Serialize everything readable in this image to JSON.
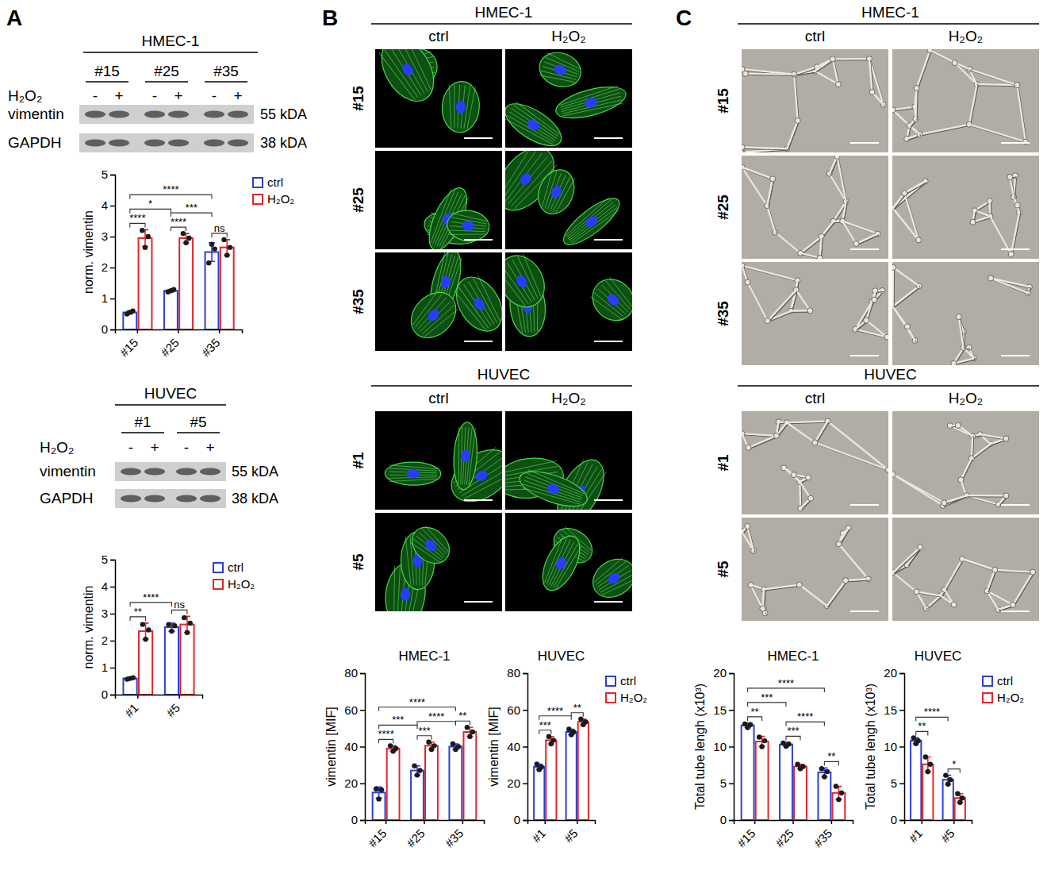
{
  "figure": {
    "panel_letters": [
      "A",
      "B",
      "C"
    ],
    "blots": [
      {
        "cell_line": "HMEC-1",
        "groups": [
          "#15",
          "#25",
          "#35"
        ],
        "treatment": "H₂O₂",
        "lanes": [
          "-",
          "+",
          "-",
          "+",
          "-",
          "+"
        ],
        "rows": [
          {
            "protein": "vimentin",
            "size": "55 kDA"
          },
          {
            "protein": "GAPDH",
            "size": "38 kDA"
          }
        ]
      },
      {
        "cell_line": "HUVEC",
        "groups": [
          "#1",
          "#5"
        ],
        "treatment": "H₂O₂",
        "lanes": [
          "-",
          "+",
          "-",
          "+"
        ],
        "rows": [
          {
            "protein": "vimentin",
            "size": "55 kDA"
          },
          {
            "protein": "GAPDH",
            "size": "38 kDA"
          }
        ]
      }
    ],
    "immunofluorescence": [
      {
        "cell_line": "HMEC-1",
        "columns": [
          "ctrl",
          "H₂O₂"
        ],
        "rows": [
          "#15",
          "#25",
          "#35"
        ]
      },
      {
        "cell_line": "HUVEC",
        "columns": [
          "ctrl",
          "H₂O₂"
        ],
        "rows": [
          "#1",
          "#5"
        ]
      }
    ],
    "tube_formation": [
      {
        "cell_line": "HMEC-1",
        "columns": [
          "ctrl",
          "H₂O₂"
        ],
        "rows": [
          "#15",
          "#25",
          "#35"
        ]
      },
      {
        "cell_line": "HUVEC",
        "columns": [
          "ctrl",
          "H₂O₂"
        ],
        "rows": [
          "#1",
          "#5"
        ]
      }
    ]
  },
  "chart_data": [
    {
      "type": "bar",
      "ylabel": "norm. vimentin",
      "categories": [
        "#15",
        "#25",
        "#35"
      ],
      "series": [
        {
          "name": "ctrl",
          "color": "#2b3fd6",
          "values": [
            0.55,
            1.25,
            2.5
          ],
          "errors": [
            0.05,
            0.04,
            0.3
          ],
          "points": [
            [
              0.5,
              0.55,
              0.6
            ],
            [
              1.21,
              1.25,
              1.29
            ],
            [
              2.15,
              2.75,
              2.6
            ]
          ]
        },
        {
          "name": "H₂O₂",
          "color": "#e0262b",
          "values": [
            2.95,
            2.95,
            2.65
          ],
          "errors": [
            0.27,
            0.15,
            0.25
          ],
          "points": [
            [
              3.2,
              2.65,
              3.0
            ],
            [
              3.1,
              2.8,
              2.95
            ],
            [
              2.9,
              2.4,
              2.65
            ]
          ]
        }
      ],
      "ylim": [
        0,
        5
      ],
      "yticks": [
        0,
        1,
        2,
        3,
        4,
        5
      ],
      "legend": "upper right",
      "comparisons": [
        {
          "label": "****",
          "a": [
            0,
            0
          ],
          "b": [
            0,
            2
          ]
        },
        {
          "label": "*",
          "a": [
            0,
            0
          ],
          "b": [
            0,
            1
          ]
        },
        {
          "label": "***",
          "a": [
            0,
            1
          ],
          "b": [
            0,
            2
          ]
        },
        {
          "label": "****",
          "a": [
            0,
            0
          ],
          "b": [
            1,
            0
          ]
        },
        {
          "label": "****",
          "a": [
            0,
            1
          ],
          "b": [
            1,
            1
          ]
        },
        {
          "label": "ns",
          "a": [
            0,
            2
          ],
          "b": [
            1,
            2
          ]
        }
      ]
    },
    {
      "type": "bar",
      "ylabel": "norm. vimentin",
      "categories": [
        "#1",
        "#5"
      ],
      "series": [
        {
          "name": "ctrl",
          "color": "#2b3fd6",
          "values": [
            0.6,
            2.5
          ],
          "errors": [
            0.05,
            0.15
          ],
          "points": [
            [
              0.57,
              0.6,
              0.63
            ],
            [
              2.6,
              2.35,
              2.55
            ]
          ]
        },
        {
          "name": "H₂O₂",
          "color": "#e0262b",
          "values": [
            2.35,
            2.6
          ],
          "errors": [
            0.3,
            0.3
          ],
          "points": [
            [
              2.6,
              2.05,
              2.4
            ],
            [
              2.85,
              2.3,
              2.65
            ]
          ]
        }
      ],
      "ylim": [
        0,
        5
      ],
      "yticks": [
        0,
        1,
        2,
        3,
        4,
        5
      ],
      "legend": "upper right",
      "comparisons": [
        {
          "label": "****",
          "a": [
            0,
            0
          ],
          "b": [
            0,
            1
          ]
        },
        {
          "label": "**",
          "a": [
            0,
            0
          ],
          "b": [
            1,
            0
          ]
        },
        {
          "label": "ns",
          "a": [
            0,
            1
          ],
          "b": [
            1,
            1
          ]
        }
      ]
    },
    {
      "type": "bar",
      "title": "HMEC-1",
      "ylabel": "vimentin [MIF]",
      "categories": [
        "#15",
        "#25",
        "#35"
      ],
      "series": [
        {
          "name": "ctrl",
          "color": "#2b3fd6",
          "values": [
            15,
            27,
            40
          ],
          "errors": [
            3,
            2.5,
            1.5
          ],
          "points": [
            [
              17,
              11.5,
              16.5
            ],
            [
              29.5,
              24.5,
              27
            ],
            [
              41.5,
              38.5,
              40
            ]
          ]
        },
        {
          "name": "H₂O₂",
          "color": "#e0262b",
          "values": [
            39,
            40.5,
            48
          ],
          "errors": [
            1.5,
            2,
            2.5
          ],
          "points": [
            [
              40.5,
              37.5,
              39
            ],
            [
              42.5,
              38.5,
              40.5
            ],
            [
              50.5,
              45.5,
              48
            ]
          ]
        }
      ],
      "ylim": [
        0,
        80
      ],
      "yticks": [
        0,
        20,
        40,
        60,
        80
      ],
      "comparisons": [
        {
          "label": "****",
          "a": [
            0,
            0
          ],
          "b": [
            0,
            2
          ]
        },
        {
          "label": "***",
          "a": [
            0,
            0
          ],
          "b": [
            0,
            1
          ]
        },
        {
          "label": "****",
          "a": [
            0,
            1
          ],
          "b": [
            0,
            2
          ]
        },
        {
          "label": "****",
          "a": [
            0,
            0
          ],
          "b": [
            1,
            0
          ]
        },
        {
          "label": "***",
          "a": [
            0,
            1
          ],
          "b": [
            1,
            1
          ]
        },
        {
          "label": "**",
          "a": [
            0,
            2
          ],
          "b": [
            1,
            2
          ]
        }
      ]
    },
    {
      "type": "bar",
      "title": "HUVEC",
      "ylabel": "vimentin [MIF]",
      "categories": [
        "#1",
        "#5"
      ],
      "series": [
        {
          "name": "ctrl",
          "color": "#2b3fd6",
          "values": [
            29,
            48
          ],
          "errors": [
            1.5,
            1.5
          ],
          "points": [
            [
              30.5,
              27.5,
              29
            ],
            [
              49.5,
              46.5,
              48
            ]
          ]
        },
        {
          "name": "H₂O₂",
          "color": "#e0262b",
          "values": [
            43.5,
            53.5
          ],
          "errors": [
            2,
            1.5
          ],
          "points": [
            [
              45.5,
              41.5,
              43.5
            ],
            [
              55,
              52,
              53.5
            ]
          ]
        }
      ],
      "ylim": [
        0,
        80
      ],
      "yticks": [
        0,
        20,
        40,
        60,
        80
      ],
      "legend": "upper right",
      "comparisons": [
        {
          "label": "****",
          "a": [
            0,
            0
          ],
          "b": [
            0,
            1
          ]
        },
        {
          "label": "***",
          "a": [
            0,
            0
          ],
          "b": [
            1,
            0
          ]
        },
        {
          "label": "**",
          "a": [
            0,
            1
          ],
          "b": [
            1,
            1
          ]
        }
      ]
    },
    {
      "type": "bar",
      "title": "HMEC-1",
      "ylabel": "Total tube lengh (x10³)",
      "categories": [
        "#15",
        "#25",
        "#35"
      ],
      "series": [
        {
          "name": "ctrl",
          "color": "#2b3fd6",
          "values": [
            12.9,
            10.3,
            6.5
          ],
          "errors": [
            0.3,
            0.25,
            0.6
          ],
          "points": [
            [
              13.1,
              12.6,
              13.0
            ],
            [
              10.5,
              10.05,
              10.35
            ],
            [
              7.0,
              5.9,
              6.6
            ]
          ]
        },
        {
          "name": "H₂O₂",
          "color": "#e0262b",
          "values": [
            10.7,
            7.3,
            3.7
          ],
          "errors": [
            0.7,
            0.3,
            0.9
          ],
          "points": [
            [
              11.3,
              10.0,
              10.8
            ],
            [
              7.6,
              7.0,
              7.3
            ],
            [
              4.6,
              2.8,
              3.7
            ]
          ]
        }
      ],
      "ylim": [
        0,
        20
      ],
      "yticks": [
        0,
        5,
        10,
        15,
        20
      ],
      "comparisons": [
        {
          "label": "****",
          "a": [
            0,
            0
          ],
          "b": [
            0,
            2
          ]
        },
        {
          "label": "***",
          "a": [
            0,
            0
          ],
          "b": [
            0,
            1
          ]
        },
        {
          "label": "****",
          "a": [
            0,
            1
          ],
          "b": [
            0,
            2
          ]
        },
        {
          "label": "**",
          "a": [
            0,
            0
          ],
          "b": [
            1,
            0
          ]
        },
        {
          "label": "***",
          "a": [
            0,
            1
          ],
          "b": [
            1,
            1
          ]
        },
        {
          "label": "**",
          "a": [
            0,
            2
          ],
          "b": [
            1,
            2
          ]
        }
      ]
    },
    {
      "type": "bar",
      "title": "HUVEC",
      "ylabel": "Total tube lengh (x10³)",
      "categories": [
        "#1",
        "#5"
      ],
      "series": [
        {
          "name": "ctrl",
          "color": "#2b3fd6",
          "values": [
            10.8,
            5.5
          ],
          "errors": [
            0.4,
            0.6
          ],
          "points": [
            [
              11.2,
              10.4,
              10.8
            ],
            [
              6.1,
              4.9,
              5.5
            ]
          ]
        },
        {
          "name": "H₂O₂",
          "color": "#e0262b",
          "values": [
            7.6,
            3.0
          ],
          "errors": [
            1.0,
            0.6
          ],
          "points": [
            [
              8.6,
              6.6,
              7.6
            ],
            [
              3.6,
              2.4,
              3.0
            ]
          ]
        }
      ],
      "ylim": [
        0,
        20
      ],
      "yticks": [
        0,
        5,
        10,
        15,
        20
      ],
      "legend": "upper right",
      "comparisons": [
        {
          "label": "****",
          "a": [
            0,
            0
          ],
          "b": [
            0,
            1
          ]
        },
        {
          "label": "**",
          "a": [
            0,
            0
          ],
          "b": [
            1,
            0
          ]
        },
        {
          "label": "*",
          "a": [
            0,
            1
          ],
          "b": [
            1,
            1
          ]
        }
      ]
    }
  ]
}
